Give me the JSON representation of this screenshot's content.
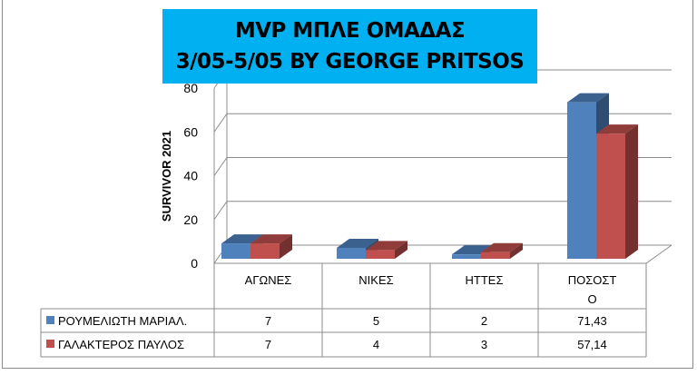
{
  "chart_data": {
    "type": "bar",
    "title": [
      "MVP ΜΠΛΕ ΟΜΑΔΑΣ",
      "3/05-5/05 BY GEORGE PRITSOS"
    ],
    "ylabel": "SURVIVOR 2021",
    "xlabel": "",
    "ylim": [
      0,
      80
    ],
    "yticks": [
      "0",
      "20",
      "40",
      "60",
      "80"
    ],
    "grid": true,
    "categories": [
      [
        "ΑΓΩΝΕΣ"
      ],
      [
        "ΝΙΚΕΣ"
      ],
      [
        "ΗΤΤΕΣ"
      ],
      [
        "ΠΟΣΟΣΤ",
        "Ο"
      ]
    ],
    "series": [
      {
        "name": "ΡΟΥΜΕΛΙΩΤΗ ΜΑΡΙΑΛ.",
        "color": "#4f81bd",
        "values": [
          7,
          5,
          2,
          71.43
        ],
        "labels": [
          "7",
          "5",
          "2",
          "71,43"
        ]
      },
      {
        "name": "ΓΑΛΑΚΤΕΡΟΣ ΠΑΥΛΟΣ",
        "color": "#c0504d",
        "values": [
          7,
          4,
          3,
          57.14
        ],
        "labels": [
          "7",
          "4",
          "3",
          "57,14"
        ]
      }
    ],
    "legend": "data-table"
  }
}
